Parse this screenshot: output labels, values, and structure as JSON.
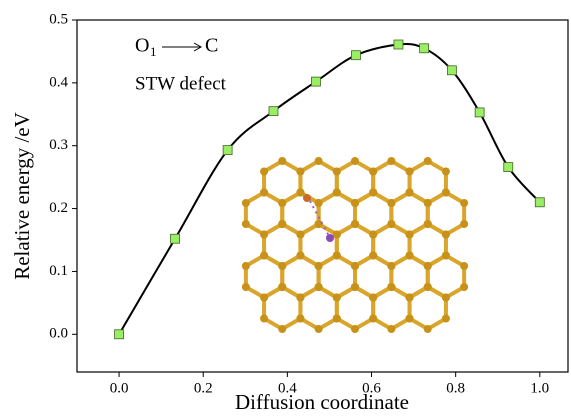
{
  "chart_data": {
    "type": "line",
    "x_label": "Diffusion coordinate",
    "y_label": "Relative energy /eV",
    "annotation": {
      "species": "O",
      "subscript": "1",
      "target": "C",
      "defect": "STW defect"
    },
    "x": [
      0,
      0.133,
      0.258,
      0.367,
      0.468,
      0.563,
      0.664,
      0.725,
      0.791,
      0.857,
      0.925,
      1.0
    ],
    "series": [
      {
        "color": "#000000",
        "marker_color": "#99ee66",
        "values": [
          0.0,
          0.152,
          0.293,
          0.355,
          0.402,
          0.444,
          0.461,
          0.455,
          0.42,
          0.353,
          0.266,
          0.21
        ]
      }
    ],
    "xlim": [
      -0.1,
      1.067
    ],
    "ylim": [
      -0.06,
      0.5
    ],
    "xticks": [
      {
        "value": 0,
        "label": "0.0"
      },
      0.2,
      0.4,
      0.6,
      0.8,
      {
        "value": 1,
        "label": "1.0"
      }
    ],
    "yticks": [
      {
        "value": 0,
        "label": "0.0"
      },
      0.1,
      0.2,
      0.3,
      0.4,
      0.5
    ],
    "grid": false
  }
}
